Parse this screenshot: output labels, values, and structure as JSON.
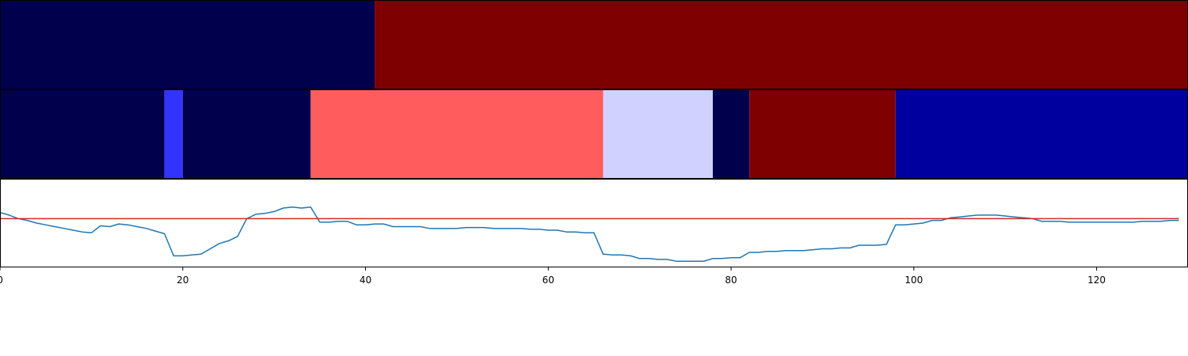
{
  "chart_data": [
    {
      "type": "heatmap",
      "xlim": [
        0,
        130
      ],
      "segments": [
        {
          "start": 0,
          "end": 41,
          "color": "#00004c"
        },
        {
          "start": 41,
          "end": 130,
          "color": "#7f0000"
        }
      ]
    },
    {
      "type": "heatmap",
      "xlim": [
        0,
        130
      ],
      "segments": [
        {
          "start": 0,
          "end": 18,
          "color": "#00004c"
        },
        {
          "start": 18,
          "end": 20,
          "color": "#3333ff"
        },
        {
          "start": 20,
          "end": 34,
          "color": "#00004c"
        },
        {
          "start": 34,
          "end": 66,
          "color": "#ff5d5d"
        },
        {
          "start": 66,
          "end": 78,
          "color": "#d1d1ff"
        },
        {
          "start": 78,
          "end": 82,
          "color": "#00004c"
        },
        {
          "start": 82,
          "end": 98,
          "color": "#7f0000"
        },
        {
          "start": 98,
          "end": 130,
          "color": "#00009f"
        }
      ]
    },
    {
      "type": "line",
      "xlim": [
        0,
        130
      ],
      "ylim": [
        0,
        1
      ],
      "grid": false,
      "xticks": [
        0,
        20,
        40,
        60,
        80,
        100,
        120
      ],
      "series": [
        {
          "color": "#1f77b4",
          "x": [
            0,
            1,
            2,
            3,
            4,
            5,
            6,
            7,
            8,
            9,
            10,
            11,
            12,
            13,
            14,
            15,
            16,
            17,
            18,
            19,
            20,
            21,
            22,
            23,
            24,
            25,
            26,
            27,
            28,
            29,
            30,
            31,
            32,
            33,
            34,
            35,
            36,
            37,
            38,
            39,
            40,
            41,
            42,
            43,
            44,
            45,
            46,
            47,
            48,
            49,
            50,
            51,
            52,
            53,
            54,
            55,
            56,
            57,
            58,
            59,
            60,
            61,
            62,
            63,
            64,
            65,
            66,
            67,
            68,
            69,
            70,
            71,
            72,
            73,
            74,
            75,
            76,
            77,
            78,
            79,
            80,
            81,
            82,
            83,
            84,
            85,
            86,
            87,
            88,
            89,
            90,
            91,
            92,
            93,
            94,
            95,
            96,
            97,
            98,
            99,
            100,
            101,
            102,
            103,
            104,
            105,
            106,
            107,
            108,
            109,
            110,
            111,
            112,
            113,
            114,
            115,
            116,
            117,
            118,
            119,
            120,
            121,
            122,
            123,
            124,
            125,
            126,
            127,
            128,
            129
          ],
          "y": [
            0.62,
            0.59,
            0.55,
            0.53,
            0.5,
            0.48,
            0.46,
            0.44,
            0.42,
            0.4,
            0.39,
            0.47,
            0.46,
            0.49,
            0.48,
            0.46,
            0.44,
            0.41,
            0.38,
            0.13,
            0.13,
            0.14,
            0.15,
            0.21,
            0.27,
            0.3,
            0.35,
            0.55,
            0.6,
            0.61,
            0.63,
            0.67,
            0.68,
            0.67,
            0.68,
            0.51,
            0.51,
            0.52,
            0.52,
            0.48,
            0.48,
            0.49,
            0.49,
            0.46,
            0.46,
            0.46,
            0.46,
            0.44,
            0.44,
            0.44,
            0.44,
            0.45,
            0.45,
            0.45,
            0.44,
            0.44,
            0.44,
            0.44,
            0.43,
            0.43,
            0.42,
            0.42,
            0.4,
            0.4,
            0.39,
            0.39,
            0.15,
            0.14,
            0.14,
            0.13,
            0.1,
            0.1,
            0.09,
            0.09,
            0.07,
            0.07,
            0.07,
            0.07,
            0.1,
            0.1,
            0.11,
            0.11,
            0.17,
            0.17,
            0.18,
            0.18,
            0.19,
            0.19,
            0.19,
            0.2,
            0.21,
            0.21,
            0.22,
            0.22,
            0.25,
            0.25,
            0.25,
            0.26,
            0.48,
            0.48,
            0.49,
            0.5,
            0.53,
            0.53,
            0.56,
            0.57,
            0.58,
            0.59,
            0.59,
            0.59,
            0.58,
            0.57,
            0.56,
            0.55,
            0.52,
            0.52,
            0.52,
            0.51,
            0.51,
            0.51,
            0.51,
            0.51,
            0.51,
            0.51,
            0.51,
            0.52,
            0.52,
            0.52,
            0.53,
            0.53
          ]
        }
      ],
      "reference_line": {
        "y": 0.55,
        "color": "#d62728"
      }
    }
  ]
}
